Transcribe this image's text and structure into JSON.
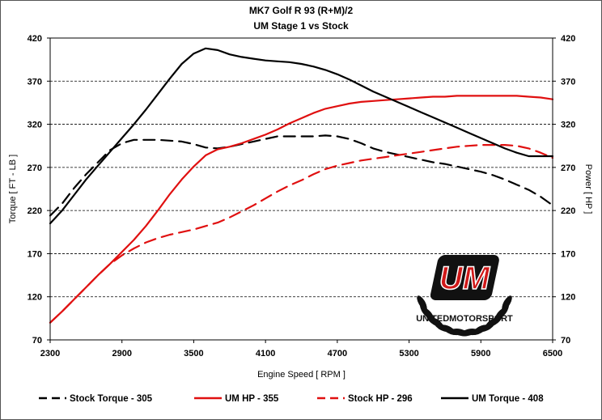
{
  "chart_data": {
    "type": "line",
    "title": "MK7 Golf R 93 (R+M)/2",
    "subtitle": "UM Stage 1 vs Stock",
    "xlabel": "Engine Speed [ RPM ]",
    "ylabel_left": "Torque [ FT - LB ]",
    "ylabel_right": "Power [ HP ]",
    "xlim": [
      2300,
      6500
    ],
    "ylim": [
      70,
      420
    ],
    "x_ticks": [
      "2300",
      "2900",
      "3500",
      "4100",
      "4700",
      "5300",
      "5900",
      "6500"
    ],
    "y_ticks": [
      "420",
      "370",
      "320",
      "270",
      "220",
      "170",
      "120",
      "70"
    ],
    "grid": "horizontal-dashed",
    "legend_position": "bottom",
    "logo_text": "UNITEDMOTORSPORT",
    "logo_letters": "UM",
    "series": [
      {
        "name": "Stock Torque - 305",
        "color": "#000000",
        "dash": "dashed",
        "x": [
          2300,
          2400,
          2500,
          2600,
          2700,
          2800,
          2900,
          3000,
          3100,
          3200,
          3300,
          3400,
          3500,
          3600,
          3700,
          3800,
          3900,
          4000,
          4100,
          4200,
          4300,
          4400,
          4500,
          4600,
          4700,
          4800,
          4900,
          5000,
          5100,
          5200,
          5300,
          5400,
          5500,
          5600,
          5700,
          5800,
          5900,
          6000,
          6100,
          6200,
          6300,
          6400,
          6500
        ],
        "values": [
          214,
          228,
          246,
          262,
          276,
          290,
          298,
          302,
          302,
          302,
          301,
          300,
          297,
          293,
          292,
          294,
          297,
          300,
          303,
          306,
          306,
          306,
          306,
          307,
          306,
          303,
          298,
          292,
          288,
          285,
          282,
          279,
          276,
          274,
          271,
          268,
          265,
          261,
          256,
          250,
          244,
          236,
          226
        ]
      },
      {
        "name": "UM HP - 355",
        "color": "#e01010",
        "dash": "solid",
        "x": [
          2300,
          2400,
          2500,
          2600,
          2700,
          2800,
          2900,
          3000,
          3100,
          3200,
          3300,
          3400,
          3500,
          3600,
          3700,
          3800,
          3900,
          4000,
          4100,
          4200,
          4300,
          4400,
          4500,
          4600,
          4700,
          4800,
          4900,
          5000,
          5100,
          5200,
          5300,
          5400,
          5500,
          5600,
          5700,
          5800,
          5900,
          6000,
          6100,
          6200,
          6300,
          6400,
          6500
        ],
        "values": [
          90,
          103,
          117,
          131,
          145,
          158,
          172,
          186,
          202,
          220,
          239,
          256,
          271,
          284,
          291,
          294,
          298,
          303,
          308,
          314,
          321,
          327,
          333,
          338,
          341,
          344,
          346,
          347,
          348,
          349,
          350,
          351,
          352,
          352,
          353,
          353,
          353,
          353,
          353,
          353,
          352,
          351,
          349
        ]
      },
      {
        "name": "Stock HP - 296",
        "color": "#e01010",
        "dash": "dashed",
        "x": [
          2300,
          2400,
          2500,
          2600,
          2700,
          2800,
          2900,
          3000,
          3100,
          3200,
          3300,
          3400,
          3500,
          3600,
          3700,
          3800,
          3900,
          4000,
          4100,
          4200,
          4300,
          4400,
          4500,
          4600,
          4700,
          4800,
          4900,
          5000,
          5100,
          5200,
          5300,
          5400,
          5500,
          5600,
          5700,
          5800,
          5900,
          6000,
          6100,
          6200,
          6300,
          6400,
          6500
        ],
        "values": [
          90,
          103,
          117,
          131,
          145,
          158,
          168,
          176,
          183,
          188,
          192,
          195,
          198,
          202,
          206,
          212,
          219,
          226,
          234,
          242,
          249,
          255,
          262,
          268,
          272,
          275,
          278,
          280,
          282,
          284,
          286,
          288,
          290,
          292,
          294,
          295,
          296,
          296,
          296,
          295,
          292,
          287,
          281
        ]
      },
      {
        "name": "UM Torque - 408",
        "color": "#000000",
        "dash": "solid",
        "x": [
          2300,
          2400,
          2500,
          2600,
          2700,
          2800,
          2900,
          3000,
          3100,
          3200,
          3300,
          3400,
          3500,
          3600,
          3700,
          3800,
          3900,
          4000,
          4100,
          4200,
          4300,
          4400,
          4500,
          4600,
          4700,
          4800,
          4900,
          5000,
          5100,
          5200,
          5300,
          5400,
          5500,
          5600,
          5700,
          5800,
          5900,
          6000,
          6100,
          6200,
          6300,
          6400,
          6500
        ],
        "values": [
          205,
          220,
          238,
          256,
          272,
          288,
          304,
          320,
          337,
          355,
          373,
          390,
          402,
          408,
          406,
          401,
          398,
          396,
          394,
          393,
          392,
          390,
          387,
          383,
          378,
          372,
          365,
          358,
          352,
          346,
          340,
          334,
          328,
          322,
          316,
          310,
          304,
          298,
          292,
          287,
          283,
          283,
          283
        ]
      }
    ]
  }
}
